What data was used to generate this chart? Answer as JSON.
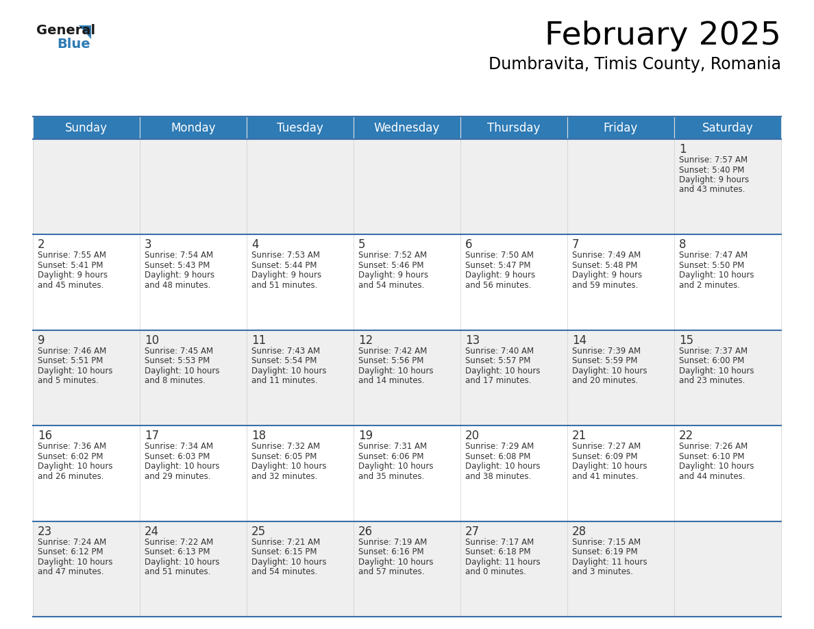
{
  "title": "February 2025",
  "subtitle": "Dumbravita, Timis County, Romania",
  "header_bg": "#2E7BB5",
  "header_text_color": "#FFFFFF",
  "cell_bg_row0": "#EFEFEF",
  "cell_bg_row1": "#FFFFFF",
  "cell_bg_row2": "#EFEFEF",
  "cell_bg_row3": "#FFFFFF",
  "cell_bg_row4": "#EFEFEF",
  "separator_color": "#3a6fa8",
  "text_color": "#333333",
  "day_headers": [
    "Sunday",
    "Monday",
    "Tuesday",
    "Wednesday",
    "Thursday",
    "Friday",
    "Saturday"
  ],
  "title_fontsize": 34,
  "subtitle_fontsize": 17,
  "header_fontsize": 12,
  "day_number_fontsize": 12,
  "info_fontsize": 8.5,
  "days": [
    {
      "day": 1,
      "col": 6,
      "row": 0,
      "sunrise": "7:57 AM",
      "sunset": "5:40 PM",
      "daylight_h": "9 hours",
      "daylight_m": "43 minutes."
    },
    {
      "day": 2,
      "col": 0,
      "row": 1,
      "sunrise": "7:55 AM",
      "sunset": "5:41 PM",
      "daylight_h": "9 hours",
      "daylight_m": "45 minutes."
    },
    {
      "day": 3,
      "col": 1,
      "row": 1,
      "sunrise": "7:54 AM",
      "sunset": "5:43 PM",
      "daylight_h": "9 hours",
      "daylight_m": "48 minutes."
    },
    {
      "day": 4,
      "col": 2,
      "row": 1,
      "sunrise": "7:53 AM",
      "sunset": "5:44 PM",
      "daylight_h": "9 hours",
      "daylight_m": "51 minutes."
    },
    {
      "day": 5,
      "col": 3,
      "row": 1,
      "sunrise": "7:52 AM",
      "sunset": "5:46 PM",
      "daylight_h": "9 hours",
      "daylight_m": "54 minutes."
    },
    {
      "day": 6,
      "col": 4,
      "row": 1,
      "sunrise": "7:50 AM",
      "sunset": "5:47 PM",
      "daylight_h": "9 hours",
      "daylight_m": "56 minutes."
    },
    {
      "day": 7,
      "col": 5,
      "row": 1,
      "sunrise": "7:49 AM",
      "sunset": "5:48 PM",
      "daylight_h": "9 hours",
      "daylight_m": "59 minutes."
    },
    {
      "day": 8,
      "col": 6,
      "row": 1,
      "sunrise": "7:47 AM",
      "sunset": "5:50 PM",
      "daylight_h": "10 hours",
      "daylight_m": "2 minutes."
    },
    {
      "day": 9,
      "col": 0,
      "row": 2,
      "sunrise": "7:46 AM",
      "sunset": "5:51 PM",
      "daylight_h": "10 hours",
      "daylight_m": "5 minutes."
    },
    {
      "day": 10,
      "col": 1,
      "row": 2,
      "sunrise": "7:45 AM",
      "sunset": "5:53 PM",
      "daylight_h": "10 hours",
      "daylight_m": "8 minutes."
    },
    {
      "day": 11,
      "col": 2,
      "row": 2,
      "sunrise": "7:43 AM",
      "sunset": "5:54 PM",
      "daylight_h": "10 hours",
      "daylight_m": "11 minutes."
    },
    {
      "day": 12,
      "col": 3,
      "row": 2,
      "sunrise": "7:42 AM",
      "sunset": "5:56 PM",
      "daylight_h": "10 hours",
      "daylight_m": "14 minutes."
    },
    {
      "day": 13,
      "col": 4,
      "row": 2,
      "sunrise": "7:40 AM",
      "sunset": "5:57 PM",
      "daylight_h": "10 hours",
      "daylight_m": "17 minutes."
    },
    {
      "day": 14,
      "col": 5,
      "row": 2,
      "sunrise": "7:39 AM",
      "sunset": "5:59 PM",
      "daylight_h": "10 hours",
      "daylight_m": "20 minutes."
    },
    {
      "day": 15,
      "col": 6,
      "row": 2,
      "sunrise": "7:37 AM",
      "sunset": "6:00 PM",
      "daylight_h": "10 hours",
      "daylight_m": "23 minutes."
    },
    {
      "day": 16,
      "col": 0,
      "row": 3,
      "sunrise": "7:36 AM",
      "sunset": "6:02 PM",
      "daylight_h": "10 hours",
      "daylight_m": "26 minutes."
    },
    {
      "day": 17,
      "col": 1,
      "row": 3,
      "sunrise": "7:34 AM",
      "sunset": "6:03 PM",
      "daylight_h": "10 hours",
      "daylight_m": "29 minutes."
    },
    {
      "day": 18,
      "col": 2,
      "row": 3,
      "sunrise": "7:32 AM",
      "sunset": "6:05 PM",
      "daylight_h": "10 hours",
      "daylight_m": "32 minutes."
    },
    {
      "day": 19,
      "col": 3,
      "row": 3,
      "sunrise": "7:31 AM",
      "sunset": "6:06 PM",
      "daylight_h": "10 hours",
      "daylight_m": "35 minutes."
    },
    {
      "day": 20,
      "col": 4,
      "row": 3,
      "sunrise": "7:29 AM",
      "sunset": "6:08 PM",
      "daylight_h": "10 hours",
      "daylight_m": "38 minutes."
    },
    {
      "day": 21,
      "col": 5,
      "row": 3,
      "sunrise": "7:27 AM",
      "sunset": "6:09 PM",
      "daylight_h": "10 hours",
      "daylight_m": "41 minutes."
    },
    {
      "day": 22,
      "col": 6,
      "row": 3,
      "sunrise": "7:26 AM",
      "sunset": "6:10 PM",
      "daylight_h": "10 hours",
      "daylight_m": "44 minutes."
    },
    {
      "day": 23,
      "col": 0,
      "row": 4,
      "sunrise": "7:24 AM",
      "sunset": "6:12 PM",
      "daylight_h": "10 hours",
      "daylight_m": "47 minutes."
    },
    {
      "day": 24,
      "col": 1,
      "row": 4,
      "sunrise": "7:22 AM",
      "sunset": "6:13 PM",
      "daylight_h": "10 hours",
      "daylight_m": "51 minutes."
    },
    {
      "day": 25,
      "col": 2,
      "row": 4,
      "sunrise": "7:21 AM",
      "sunset": "6:15 PM",
      "daylight_h": "10 hours",
      "daylight_m": "54 minutes."
    },
    {
      "day": 26,
      "col": 3,
      "row": 4,
      "sunrise": "7:19 AM",
      "sunset": "6:16 PM",
      "daylight_h": "10 hours",
      "daylight_m": "57 minutes."
    },
    {
      "day": 27,
      "col": 4,
      "row": 4,
      "sunrise": "7:17 AM",
      "sunset": "6:18 PM",
      "daylight_h": "11 hours",
      "daylight_m": "0 minutes."
    },
    {
      "day": 28,
      "col": 5,
      "row": 4,
      "sunrise": "7:15 AM",
      "sunset": "6:19 PM",
      "daylight_h": "11 hours",
      "daylight_m": "3 minutes."
    }
  ]
}
